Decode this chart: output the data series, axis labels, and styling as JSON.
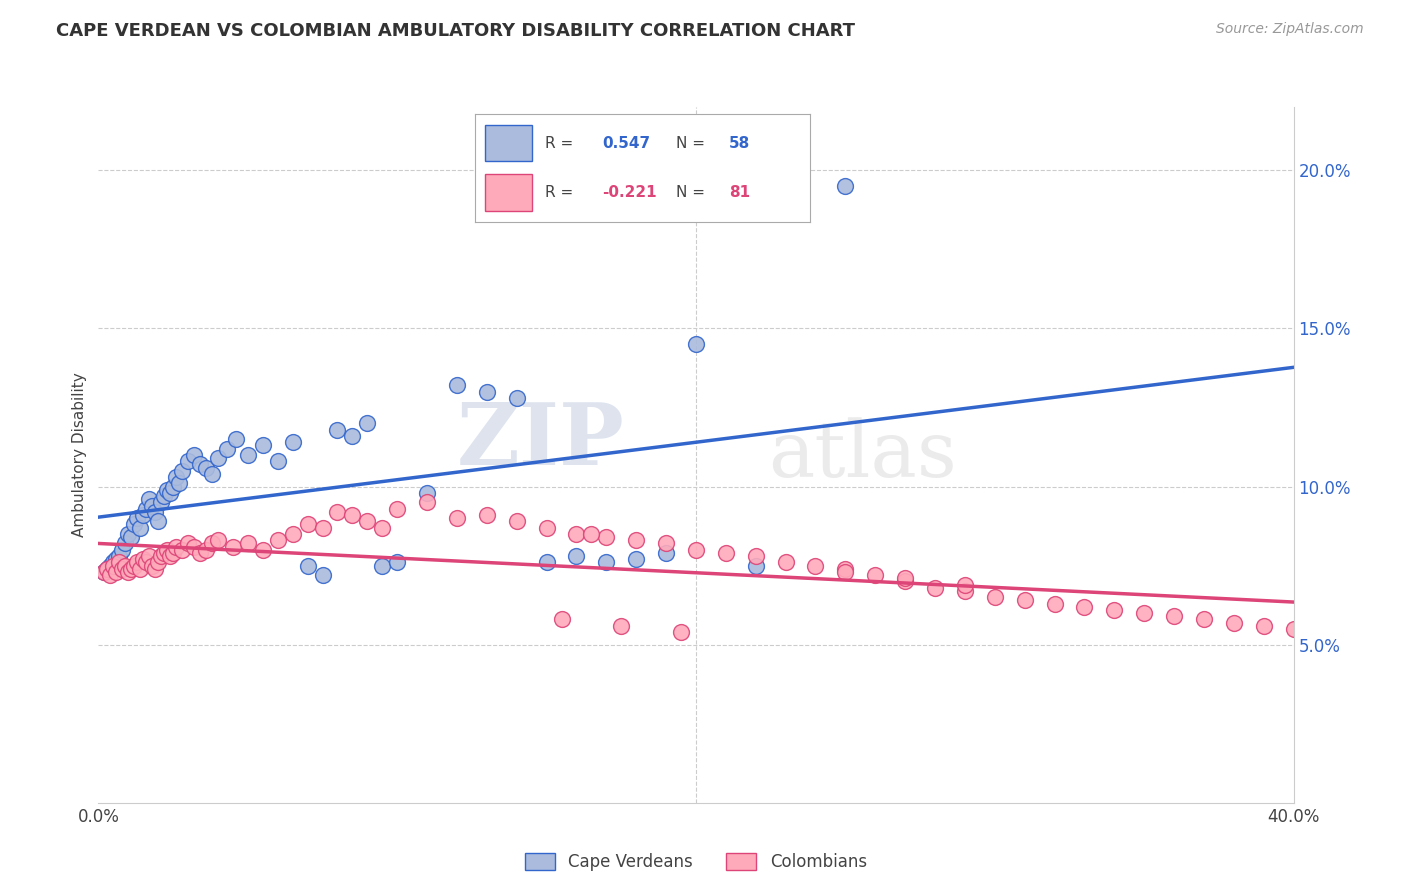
{
  "title": "CAPE VERDEAN VS COLOMBIAN AMBULATORY DISABILITY CORRELATION CHART",
  "source": "Source: ZipAtlas.com",
  "ylabel": "Ambulatory Disability",
  "xlim": [
    0.0,
    0.4
  ],
  "ylim": [
    0.0,
    0.22
  ],
  "xtick_positions": [
    0.0,
    0.2,
    0.4
  ],
  "xtick_labels": [
    "0.0%",
    "",
    "40.0%"
  ],
  "yticks_right": [
    0.05,
    0.1,
    0.15,
    0.2
  ],
  "ytick_labels_right": [
    "5.0%",
    "10.0%",
    "15.0%",
    "20.0%"
  ],
  "blue_color": "#aabbdd",
  "pink_color": "#ffaabb",
  "line_blue": "#3366cc",
  "line_pink": "#dd4477",
  "watermark_zip": "ZIP",
  "watermark_atlas": "atlas",
  "grid_color": "#cccccc",
  "cape_verdean_x": [
    0.002,
    0.003,
    0.004,
    0.005,
    0.006,
    0.007,
    0.008,
    0.009,
    0.01,
    0.011,
    0.012,
    0.013,
    0.014,
    0.015,
    0.016,
    0.017,
    0.018,
    0.019,
    0.02,
    0.021,
    0.022,
    0.023,
    0.024,
    0.025,
    0.026,
    0.027,
    0.028,
    0.03,
    0.032,
    0.034,
    0.036,
    0.038,
    0.04,
    0.043,
    0.046,
    0.05,
    0.055,
    0.06,
    0.065,
    0.07,
    0.075,
    0.08,
    0.085,
    0.09,
    0.095,
    0.1,
    0.11,
    0.12,
    0.13,
    0.14,
    0.15,
    0.16,
    0.17,
    0.18,
    0.19,
    0.2,
    0.22,
    0.25
  ],
  "cape_verdean_y": [
    0.073,
    0.074,
    0.075,
    0.076,
    0.077,
    0.078,
    0.08,
    0.082,
    0.085,
    0.084,
    0.088,
    0.09,
    0.087,
    0.091,
    0.093,
    0.096,
    0.094,
    0.092,
    0.089,
    0.095,
    0.097,
    0.099,
    0.098,
    0.1,
    0.103,
    0.101,
    0.105,
    0.108,
    0.11,
    0.107,
    0.106,
    0.104,
    0.109,
    0.112,
    0.115,
    0.11,
    0.113,
    0.108,
    0.114,
    0.075,
    0.072,
    0.118,
    0.116,
    0.12,
    0.075,
    0.076,
    0.098,
    0.132,
    0.13,
    0.128,
    0.076,
    0.078,
    0.076,
    0.077,
    0.079,
    0.145,
    0.075,
    0.195
  ],
  "colombian_x": [
    0.002,
    0.003,
    0.004,
    0.005,
    0.006,
    0.007,
    0.008,
    0.009,
    0.01,
    0.011,
    0.012,
    0.013,
    0.014,
    0.015,
    0.016,
    0.017,
    0.018,
    0.019,
    0.02,
    0.021,
    0.022,
    0.023,
    0.024,
    0.025,
    0.026,
    0.028,
    0.03,
    0.032,
    0.034,
    0.036,
    0.038,
    0.04,
    0.045,
    0.05,
    0.055,
    0.06,
    0.065,
    0.07,
    0.075,
    0.08,
    0.085,
    0.09,
    0.095,
    0.1,
    0.11,
    0.12,
    0.13,
    0.14,
    0.15,
    0.16,
    0.17,
    0.18,
    0.19,
    0.2,
    0.21,
    0.22,
    0.23,
    0.24,
    0.25,
    0.26,
    0.27,
    0.28,
    0.29,
    0.3,
    0.31,
    0.32,
    0.33,
    0.34,
    0.35,
    0.36,
    0.37,
    0.38,
    0.39,
    0.4,
    0.25,
    0.27,
    0.29,
    0.195,
    0.175,
    0.155,
    0.165
  ],
  "colombian_y": [
    0.073,
    0.074,
    0.072,
    0.075,
    0.073,
    0.076,
    0.074,
    0.075,
    0.073,
    0.074,
    0.075,
    0.076,
    0.074,
    0.077,
    0.076,
    0.078,
    0.075,
    0.074,
    0.076,
    0.078,
    0.079,
    0.08,
    0.078,
    0.079,
    0.081,
    0.08,
    0.082,
    0.081,
    0.079,
    0.08,
    0.082,
    0.083,
    0.081,
    0.082,
    0.08,
    0.083,
    0.085,
    0.088,
    0.087,
    0.092,
    0.091,
    0.089,
    0.087,
    0.093,
    0.095,
    0.09,
    0.091,
    0.089,
    0.087,
    0.085,
    0.084,
    0.083,
    0.082,
    0.08,
    0.079,
    0.078,
    0.076,
    0.075,
    0.074,
    0.072,
    0.07,
    0.068,
    0.067,
    0.065,
    0.064,
    0.063,
    0.062,
    0.061,
    0.06,
    0.059,
    0.058,
    0.057,
    0.056,
    0.055,
    0.073,
    0.071,
    0.069,
    0.054,
    0.056,
    0.058,
    0.085
  ]
}
